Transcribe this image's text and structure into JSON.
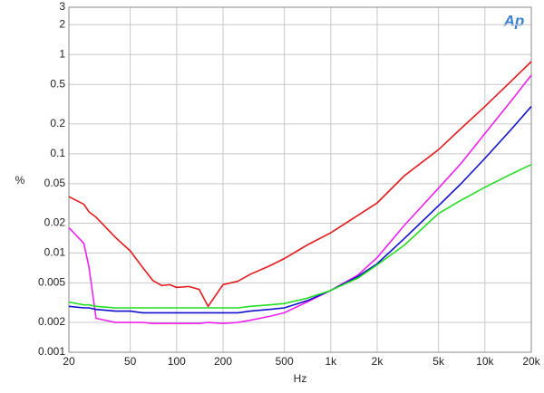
{
  "chart_data": {
    "type": "line",
    "x_label": "Hz",
    "y_label": "%",
    "watermark": "Ap",
    "log_x": true,
    "log_y": true,
    "grid": true,
    "x": [
      20,
      25,
      27,
      30,
      40,
      50,
      60,
      70,
      80,
      90,
      100,
      120,
      140,
      160,
      200,
      250,
      300,
      400,
      500,
      700,
      1000,
      1500,
      2000,
      3000,
      5000,
      7000,
      10000,
      15000,
      20000
    ],
    "series": [
      {
        "color": "#e31a1c",
        "values": [
          0.037,
          0.031,
          0.026,
          0.023,
          0.0144,
          0.0105,
          0.0072,
          0.0053,
          0.0047,
          0.0048,
          0.0045,
          0.0046,
          0.0043,
          0.0029,
          0.0048,
          0.0052,
          0.0061,
          0.0074,
          0.0088,
          0.012,
          0.016,
          0.024,
          0.032,
          0.06,
          0.11,
          0.18,
          0.3,
          0.55,
          0.85
        ]
      },
      {
        "color": "#ee22ee",
        "values": [
          0.018,
          0.0125,
          0.0072,
          0.0022,
          0.002,
          0.002,
          0.002,
          0.00195,
          0.00195,
          0.00195,
          0.00195,
          0.00195,
          0.00195,
          0.002,
          0.00195,
          0.002,
          0.0021,
          0.0023,
          0.0025,
          0.0032,
          0.0042,
          0.006,
          0.009,
          0.019,
          0.045,
          0.08,
          0.16,
          0.35,
          0.62
        ]
      },
      {
        "color": "#1010cc",
        "values": [
          0.0029,
          0.0028,
          0.0028,
          0.0027,
          0.0026,
          0.0026,
          0.0025,
          0.0025,
          0.0025,
          0.0025,
          0.0025,
          0.0025,
          0.0025,
          0.0025,
          0.0025,
          0.0025,
          0.0026,
          0.0027,
          0.0028,
          0.0033,
          0.0042,
          0.0058,
          0.0078,
          0.014,
          0.03,
          0.05,
          0.09,
          0.18,
          0.3
        ]
      },
      {
        "color": "#22dd22",
        "values": [
          0.0032,
          0.003,
          0.003,
          0.0029,
          0.0028,
          0.0028,
          0.0028,
          0.0028,
          0.0028,
          0.0028,
          0.0028,
          0.0028,
          0.0028,
          0.0028,
          0.0028,
          0.0028,
          0.0029,
          0.003,
          0.0031,
          0.0035,
          0.0042,
          0.0056,
          0.0076,
          0.012,
          0.025,
          0.034,
          0.046,
          0.063,
          0.078
        ]
      }
    ],
    "xlim": [
      20,
      20000
    ],
    "xticks": [
      20,
      50,
      100,
      200,
      500,
      {
        "value": 1000,
        "label": "1k"
      },
      {
        "value": 2000,
        "label": "2k"
      },
      {
        "value": 5000,
        "label": "5k"
      },
      {
        "value": 10000,
        "label": "10k"
      },
      {
        "value": 20000,
        "label": "20k"
      }
    ],
    "ylim": [
      0.001,
      3
    ],
    "yticks": [
      0.001,
      0.002,
      0.005,
      0.01,
      0.02,
      0.05,
      0.1,
      0.2,
      0.5,
      1,
      2,
      3
    ]
  }
}
